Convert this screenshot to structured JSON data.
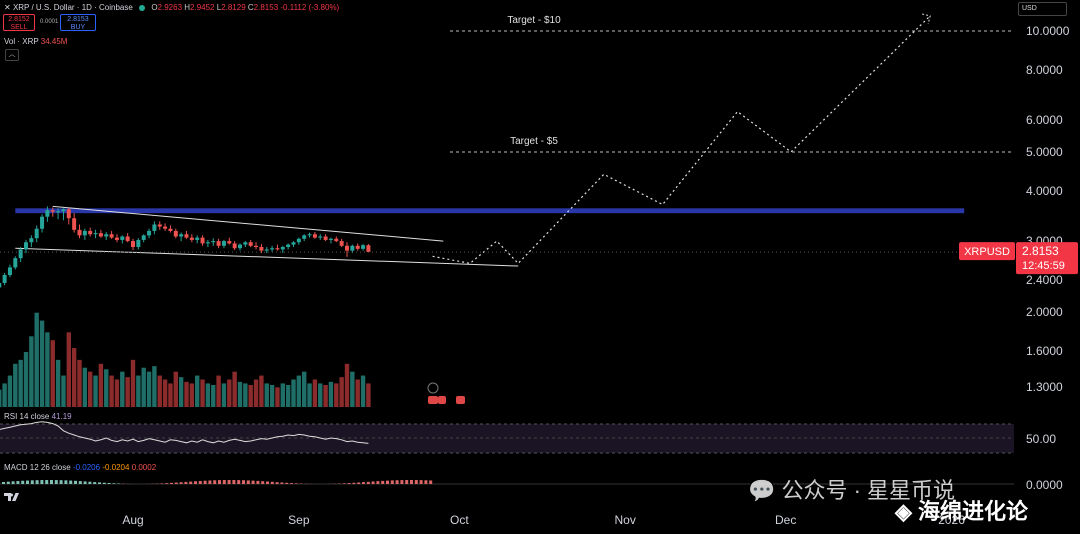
{
  "header": {
    "symbol": "XRP / U.S. Dollar · 1D · Coinbase",
    "ohlc": {
      "o_label": "O",
      "o": "2.9263",
      "h_label": "H",
      "h": "2.9452",
      "l_label": "L",
      "l": "2.8129",
      "c_label": "C",
      "c": "2.8153",
      "change": "-0.1112 (-3.80%)"
    },
    "sell_price": "2.8152",
    "sell_label": "SELL",
    "spread": "0.0001",
    "buy_price": "2.8153",
    "buy_label": "BUY",
    "volume_label": "Vol · XRP",
    "volume_value": "34.45M",
    "currency": "USD",
    "collapse_icon": "chevron-up-icon"
  },
  "colors": {
    "up": "#26a69a",
    "down": "#ef5350",
    "vol_up": "#1f6f68",
    "vol_down": "#8c2b2b",
    "zone": "#2a37a8",
    "badge": "#f23645"
  },
  "last_price": {
    "symbol": "XRPUSD",
    "price": "2.8153",
    "countdown": "12:45:59"
  },
  "indicators": {
    "rsi": {
      "label": "RSI 14 close",
      "value": "41.19",
      "axis_label": "50.00"
    },
    "macd": {
      "label": "MACD 12 26 close",
      "v1": "-0.0206",
      "v2": "-0.0204",
      "v3": "0.0002",
      "axis_label": "0.0000"
    }
  },
  "chart_data": {
    "type": "candlestick",
    "y_scale": "log",
    "ylim": [
      1.15,
      11.5
    ],
    "y_ticks": [
      "10.0000",
      "8.0000",
      "6.0000",
      "5.0000",
      "4.0000",
      "3.0000",
      "2.4000",
      "2.0000",
      "1.6000",
      "1.3000"
    ],
    "x_labels": [
      {
        "label": "Aug",
        "date": "2025-08-01"
      },
      {
        "label": "Sep",
        "date": "2025-09-01"
      },
      {
        "label": "Oct",
        "date": "2025-10-01"
      },
      {
        "label": "Nov",
        "date": "2025-11-01"
      },
      {
        "label": "Dec",
        "date": "2025-12-01"
      },
      {
        "label": "2026",
        "date": "2026-01-01"
      }
    ],
    "series_start": "2025-07-06",
    "candles": [
      [
        2.25,
        2.33,
        2.21,
        2.3
      ],
      [
        2.3,
        2.38,
        2.26,
        2.36
      ],
      [
        2.36,
        2.5,
        2.33,
        2.47
      ],
      [
        2.47,
        2.62,
        2.44,
        2.58
      ],
      [
        2.58,
        2.75,
        2.55,
        2.72
      ],
      [
        2.72,
        2.9,
        2.66,
        2.86
      ],
      [
        2.86,
        3.02,
        2.8,
        2.98
      ],
      [
        2.98,
        3.1,
        2.9,
        3.05
      ],
      [
        3.05,
        3.28,
        2.98,
        3.22
      ],
      [
        3.22,
        3.5,
        3.15,
        3.45
      ],
      [
        3.45,
        3.66,
        3.35,
        3.58
      ],
      [
        3.58,
        3.64,
        3.45,
        3.55
      ],
      [
        3.55,
        3.62,
        3.4,
        3.56
      ],
      [
        3.56,
        3.62,
        3.38,
        3.6
      ],
      [
        3.6,
        3.63,
        3.3,
        3.42
      ],
      [
        3.42,
        3.52,
        3.15,
        3.2
      ],
      [
        3.2,
        3.3,
        3.05,
        3.1
      ],
      [
        3.1,
        3.22,
        3.02,
        3.18
      ],
      [
        3.18,
        3.24,
        3.08,
        3.12
      ],
      [
        3.12,
        3.2,
        3.05,
        3.14
      ],
      [
        3.14,
        3.2,
        3.06,
        3.08
      ],
      [
        3.08,
        3.16,
        3.02,
        3.12
      ],
      [
        3.12,
        3.18,
        3.04,
        3.06
      ],
      [
        3.06,
        3.12,
        2.98,
        3.02
      ],
      [
        3.02,
        3.1,
        2.96,
        3.08
      ],
      [
        3.08,
        3.14,
        2.98,
        3.0
      ],
      [
        3.0,
        3.04,
        2.85,
        2.9
      ],
      [
        2.9,
        3.05,
        2.86,
        3.02
      ],
      [
        3.02,
        3.12,
        2.98,
        3.1
      ],
      [
        3.1,
        3.22,
        3.05,
        3.18
      ],
      [
        3.18,
        3.36,
        3.12,
        3.3
      ],
      [
        3.3,
        3.36,
        3.2,
        3.26
      ],
      [
        3.26,
        3.32,
        3.18,
        3.22
      ],
      [
        3.22,
        3.28,
        3.15,
        3.18
      ],
      [
        3.18,
        3.22,
        3.05,
        3.08
      ],
      [
        3.08,
        3.15,
        3.0,
        3.12
      ],
      [
        3.12,
        3.18,
        3.04,
        3.06
      ],
      [
        3.06,
        3.12,
        2.98,
        3.02
      ],
      [
        3.02,
        3.1,
        2.96,
        3.06
      ],
      [
        3.06,
        3.1,
        2.92,
        2.96
      ],
      [
        2.96,
        3.02,
        2.9,
        2.98
      ],
      [
        2.98,
        3.05,
        2.92,
        3.0
      ],
      [
        3.0,
        3.04,
        2.88,
        2.92
      ],
      [
        2.92,
        3.02,
        2.88,
        3.0
      ],
      [
        3.0,
        3.06,
        2.94,
        2.96
      ],
      [
        2.96,
        3.0,
        2.85,
        2.88
      ],
      [
        2.88,
        2.96,
        2.84,
        2.94
      ],
      [
        2.94,
        3.0,
        2.9,
        2.98
      ],
      [
        2.98,
        3.02,
        2.9,
        2.92
      ],
      [
        2.92,
        2.98,
        2.86,
        2.9
      ],
      [
        2.9,
        2.95,
        2.8,
        2.84
      ],
      [
        2.84,
        2.9,
        2.8,
        2.86
      ],
      [
        2.86,
        2.92,
        2.82,
        2.88
      ],
      [
        2.88,
        2.94,
        2.84,
        2.86
      ],
      [
        2.86,
        2.92,
        2.8,
        2.9
      ],
      [
        2.9,
        2.96,
        2.86,
        2.94
      ],
      [
        2.94,
        3.0,
        2.9,
        2.98
      ],
      [
        2.98,
        3.06,
        2.94,
        3.04
      ],
      [
        3.04,
        3.12,
        3.0,
        3.1
      ],
      [
        3.1,
        3.15,
        3.06,
        3.12
      ],
      [
        3.12,
        3.16,
        3.04,
        3.06
      ],
      [
        3.06,
        3.12,
        3.02,
        3.08
      ],
      [
        3.08,
        3.12,
        3.0,
        3.02
      ],
      [
        3.02,
        3.06,
        2.96,
        3.04
      ],
      [
        3.04,
        3.08,
        2.98,
        3.0
      ],
      [
        3.0,
        3.04,
        2.9,
        2.92
      ],
      [
        2.92,
        2.98,
        2.74,
        2.84
      ],
      [
        2.84,
        2.94,
        2.8,
        2.92
      ],
      [
        2.92,
        2.96,
        2.84,
        2.87
      ],
      [
        2.87,
        2.95,
        2.84,
        2.93
      ],
      [
        2.93,
        2.95,
        2.81,
        2.82
      ]
    ],
    "volume_ylim": [
      0,
      140
    ],
    "volumes": [
      18,
      22,
      30,
      40,
      55,
      60,
      70,
      90,
      120,
      110,
      95,
      85,
      60,
      40,
      95,
      75,
      60,
      50,
      45,
      40,
      55,
      48,
      40,
      35,
      45,
      38,
      60,
      40,
      50,
      45,
      52,
      40,
      35,
      30,
      45,
      38,
      32,
      30,
      40,
      35,
      30,
      28,
      40,
      30,
      35,
      45,
      32,
      30,
      28,
      35,
      40,
      30,
      28,
      25,
      30,
      28,
      35,
      40,
      45,
      30,
      35,
      30,
      28,
      32,
      30,
      38,
      55,
      45,
      35,
      40,
      30
    ],
    "channel": {
      "upper": [
        [
          "2025-07-17",
          3.66
        ],
        [
          "2025-09-28",
          3.0
        ]
      ],
      "lower": [
        [
          "2025-07-10",
          2.88
        ],
        [
          "2025-10-12",
          2.6
        ]
      ]
    },
    "resistance_zone": [
      3.52,
      3.62
    ],
    "projection": [
      [
        "2025-09-26",
        2.75
      ],
      [
        "2025-10-03",
        2.64
      ],
      [
        "2025-10-08",
        3.0
      ],
      [
        "2025-10-12",
        2.64
      ],
      [
        "2025-10-28",
        4.4
      ],
      [
        "2025-11-08",
        3.7
      ],
      [
        "2025-11-22",
        6.3
      ],
      [
        "2025-12-02",
        5.0
      ],
      [
        "2025-12-28",
        10.9
      ]
    ],
    "targets": [
      {
        "label": "Target - $10",
        "value": 10.0
      },
      {
        "label": "Target - $5",
        "value": 5.0
      }
    ],
    "rsi_values": [
      62,
      64,
      66,
      68,
      70,
      72,
      73,
      74,
      76,
      77,
      76,
      74,
      70,
      62,
      58,
      55,
      52,
      50,
      48,
      45,
      47,
      50,
      46,
      44,
      47,
      45,
      48,
      44,
      46,
      49,
      47,
      45,
      43,
      47,
      46,
      44,
      42,
      45,
      43,
      47,
      44,
      42,
      45,
      43,
      46,
      48,
      46,
      44,
      45,
      47,
      49,
      48,
      50,
      52,
      53,
      55,
      54,
      56,
      55,
      53,
      52,
      50,
      48,
      50,
      49,
      47,
      44,
      45,
      43,
      42,
      41
    ]
  }
}
